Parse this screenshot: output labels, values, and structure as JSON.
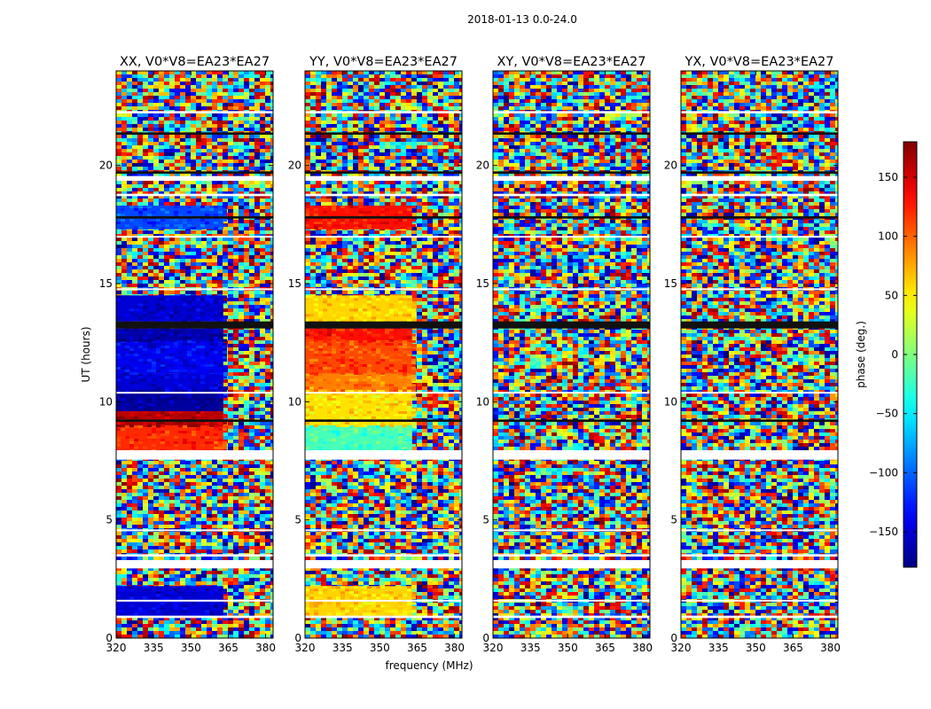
{
  "figure": {
    "suptitle": "2018-01-13 0.0-24.0",
    "xlabel": "frequency (MHz)",
    "ylabel": "UT (hours)",
    "colorbar_label": "phase (deg.)"
  },
  "chart_data": {
    "type": "heatmap",
    "panels": [
      {
        "title": "XX, V0*V8=EA23*EA27",
        "polarization": "XX"
      },
      {
        "title": "YY, V0*V8=EA23*EA27",
        "polarization": "YY"
      },
      {
        "title": "XY, V0*V8=EA23*EA27",
        "polarization": "XY"
      },
      {
        "title": "YX, V0*V8=EA23*EA27",
        "polarization": "YX"
      }
    ],
    "x": {
      "label": "frequency (MHz)",
      "range": [
        320,
        383
      ],
      "ticks": [
        320,
        335,
        350,
        365,
        380
      ]
    },
    "y": {
      "label": "UT (hours)",
      "range": [
        0,
        24
      ],
      "ticks": [
        0,
        5,
        10,
        15,
        20
      ]
    },
    "colorbar": {
      "label": "phase (deg.)",
      "range": [
        -180,
        180
      ],
      "ticks": [
        -150,
        -100,
        -50,
        0,
        50,
        100,
        150
      ],
      "colormap": "jet"
    },
    "freq_break_mhz": 363,
    "flagged_gaps_ut": [
      [
        7.55,
        7.95
      ],
      [
        2.95,
        3.3
      ],
      [
        19.35,
        19.55
      ],
      [
        0.85,
        0.95
      ],
      [
        1.55,
        1.62
      ],
      [
        3.45,
        3.55
      ],
      [
        4.55,
        4.6
      ],
      [
        18.7,
        18.8
      ],
      [
        22.2,
        22.3
      ],
      [
        10.35,
        10.42
      ],
      [
        16.95,
        17.02
      ],
      [
        14.75,
        14.8
      ]
    ],
    "dark_bands_ut": [
      [
        13.1,
        13.4
      ],
      [
        19.65,
        19.75
      ],
      [
        21.3,
        21.4
      ],
      [
        9.15,
        9.25
      ],
      [
        17.75,
        17.85
      ]
    ],
    "coherent_phase_segments": [
      {
        "panel": "XX",
        "ut": [
          7.9,
          9.0
        ],
        "freq_mhz": [
          320,
          363
        ],
        "phase_deg": 120
      },
      {
        "panel": "XX",
        "ut": [
          9.0,
          9.6
        ],
        "freq_mhz": [
          320,
          363
        ],
        "phase_deg": 160
      },
      {
        "panel": "XX",
        "ut": [
          9.6,
          10.5
        ],
        "freq_mhz": [
          320,
          363
        ],
        "phase_deg": -170
      },
      {
        "panel": "XX",
        "ut": [
          10.5,
          11.2
        ],
        "freq_mhz": [
          320,
          363
        ],
        "phase_deg": -150
      },
      {
        "panel": "XX",
        "ut": [
          11.2,
          12.6
        ],
        "freq_mhz": [
          320,
          363
        ],
        "phase_deg": -140
      },
      {
        "panel": "XX",
        "ut": [
          12.6,
          13.1
        ],
        "freq_mhz": [
          320,
          363
        ],
        "phase_deg": -165
      },
      {
        "panel": "XX",
        "ut": [
          13.4,
          14.5
        ],
        "freq_mhz": [
          320,
          363
        ],
        "phase_deg": -150
      },
      {
        "panel": "XX",
        "ut": [
          17.3,
          18.3
        ],
        "freq_mhz": [
          320,
          363
        ],
        "phase_deg": -110
      },
      {
        "panel": "XX",
        "ut": [
          0.9,
          2.2
        ],
        "freq_mhz": [
          320,
          363
        ],
        "phase_deg": -150
      },
      {
        "panel": "YY",
        "ut": [
          7.9,
          9.0
        ],
        "freq_mhz": [
          320,
          363
        ],
        "phase_deg": -20
      },
      {
        "panel": "YY",
        "ut": [
          9.0,
          10.5
        ],
        "freq_mhz": [
          320,
          363
        ],
        "phase_deg": 55
      },
      {
        "panel": "YY",
        "ut": [
          10.5,
          11.2
        ],
        "freq_mhz": [
          320,
          363
        ],
        "phase_deg": 90
      },
      {
        "panel": "YY",
        "ut": [
          11.2,
          12.6
        ],
        "freq_mhz": [
          320,
          363
        ],
        "phase_deg": 110
      },
      {
        "panel": "YY",
        "ut": [
          12.6,
          13.1
        ],
        "freq_mhz": [
          320,
          363
        ],
        "phase_deg": 130
      },
      {
        "panel": "YY",
        "ut": [
          13.4,
          14.5
        ],
        "freq_mhz": [
          320,
          363
        ],
        "phase_deg": 60
      },
      {
        "panel": "YY",
        "ut": [
          17.3,
          18.3
        ],
        "freq_mhz": [
          320,
          363
        ],
        "phase_deg": 130
      },
      {
        "panel": "YY",
        "ut": [
          0.9,
          2.2
        ],
        "freq_mhz": [
          320,
          363
        ],
        "phase_deg": 60
      }
    ]
  }
}
